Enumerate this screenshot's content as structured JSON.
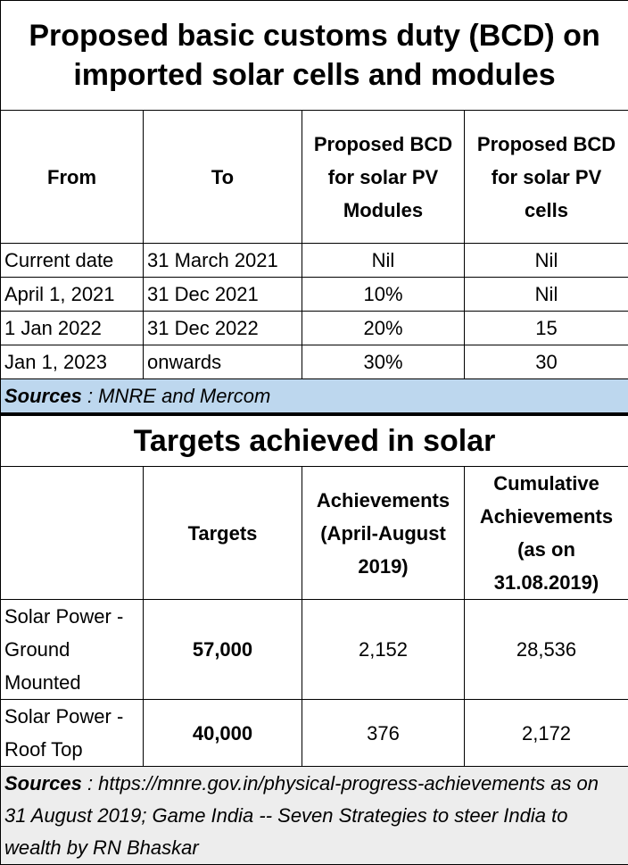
{
  "table1": {
    "title": "Proposed basic customs duty (BCD) on imported solar cells and modules",
    "headers": [
      "From",
      "To",
      "Proposed BCD for solar PV Modules",
      "Proposed BCD for solar PV cells"
    ],
    "rows": [
      [
        "Current date",
        "31 March 2021",
        "Nil",
        "Nil"
      ],
      [
        "April 1, 2021",
        "31 Dec 2021",
        "10%",
        "Nil"
      ],
      [
        "1 Jan 2022",
        "31 Dec 2022",
        "20%",
        "15"
      ],
      [
        "Jan 1, 2023",
        "onwards",
        "30%",
        "30"
      ]
    ],
    "sources": {
      "label": "Sources",
      "text": ": MNRE and Mercom"
    }
  },
  "table2": {
    "title": "Targets achieved in solar",
    "headers": [
      "Targets",
      "Achievements (April-August 2019)",
      "Cumulative Achievements (as on 31.08.2019)"
    ],
    "rows": [
      [
        "Solar Power - Ground Mounted",
        "57,000",
        "2,152",
        "28,536"
      ],
      [
        "Solar Power - Roof Top",
        "40,000",
        "376",
        "2,172"
      ]
    ],
    "sources": {
      "label": "Sources",
      "text": ": https://mnre.gov.in/physical-progress-achievements as on 31 August 2019; Game India -- Seven Strategies to steer India to wealth by RN Bhaskar"
    }
  }
}
